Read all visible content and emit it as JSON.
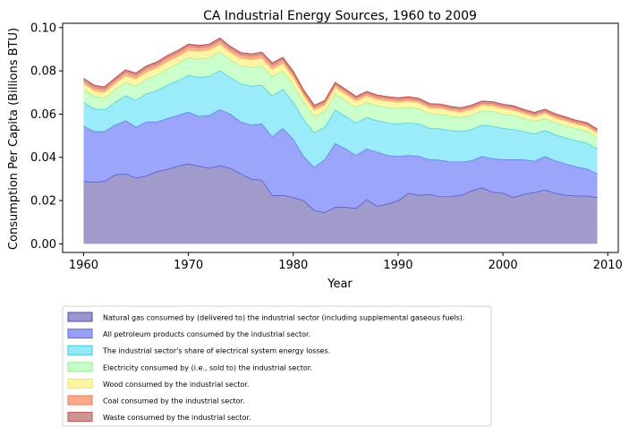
{
  "chart_data": {
    "type": "area",
    "stacked": true,
    "title": "CA Industrial Energy Sources, 1960 to 2009",
    "xlabel": "Year",
    "ylabel": "Consumption Per Capita (Billions BTU)",
    "xlim": [
      1958,
      2011
    ],
    "ylim": [
      -0.004,
      0.102
    ],
    "xticks": [
      1960,
      1970,
      1980,
      1990,
      2000,
      2010
    ],
    "yticks": [
      0.0,
      0.02,
      0.04,
      0.06,
      0.08,
      0.1
    ],
    "ytick_labels": [
      "0.00",
      "0.02",
      "0.04",
      "0.06",
      "0.08",
      "0.10"
    ],
    "grid": false,
    "legend_position": "below",
    "x": [
      1960,
      1961,
      1962,
      1963,
      1964,
      1965,
      1966,
      1967,
      1968,
      1969,
      1970,
      1971,
      1972,
      1973,
      1974,
      1975,
      1976,
      1977,
      1978,
      1979,
      1980,
      1981,
      1982,
      1983,
      1984,
      1985,
      1986,
      1987,
      1988,
      1989,
      1990,
      1991,
      1992,
      1993,
      1994,
      1995,
      1996,
      1997,
      1998,
      1999,
      2000,
      2001,
      2002,
      2003,
      2004,
      2005,
      2006,
      2007,
      2008,
      2009
    ],
    "series": [
      {
        "name": "Natural gas consumed by (delivered to) the industrial sector (including supplemental gaseous fuels).",
        "fill": "#9b96c8",
        "line": "#4650c8",
        "values": [
          0.029,
          0.0285,
          0.029,
          0.032,
          0.0325,
          0.0305,
          0.0315,
          0.0335,
          0.0345,
          0.036,
          0.037,
          0.036,
          0.035,
          0.0362,
          0.035,
          0.0325,
          0.03,
          0.0295,
          0.0225,
          0.0225,
          0.0215,
          0.02,
          0.0155,
          0.0145,
          0.017,
          0.017,
          0.0165,
          0.0205,
          0.0175,
          0.0185,
          0.02,
          0.0235,
          0.0225,
          0.023,
          0.0218,
          0.022,
          0.0225,
          0.0245,
          0.026,
          0.024,
          0.0235,
          0.0215,
          0.023,
          0.0238,
          0.025,
          0.0235,
          0.0225,
          0.0222,
          0.0222,
          0.0215
        ]
      },
      {
        "name": "All petroleum products consumed by the industrial sector.",
        "fill": "#96a0fa",
        "line": "#5a6ef0",
        "values": [
          0.0255,
          0.0235,
          0.023,
          0.023,
          0.0245,
          0.0235,
          0.025,
          0.023,
          0.0235,
          0.0235,
          0.024,
          0.023,
          0.0245,
          0.026,
          0.025,
          0.024,
          0.025,
          0.026,
          0.027,
          0.031,
          0.027,
          0.0205,
          0.02,
          0.0245,
          0.0295,
          0.027,
          0.0245,
          0.0235,
          0.025,
          0.0225,
          0.0205,
          0.0175,
          0.018,
          0.016,
          0.017,
          0.016,
          0.0155,
          0.014,
          0.0145,
          0.0155,
          0.0155,
          0.0175,
          0.016,
          0.0145,
          0.0155,
          0.015,
          0.0145,
          0.0135,
          0.0125,
          0.011
        ]
      },
      {
        "name": "The industrial sector's share of electrical system energy losses.",
        "fill": "#96ebfa",
        "line": "#32c8e6",
        "values": [
          0.011,
          0.0105,
          0.01,
          0.0105,
          0.0115,
          0.0125,
          0.013,
          0.0145,
          0.0155,
          0.016,
          0.017,
          0.018,
          0.018,
          0.018,
          0.017,
          0.0175,
          0.018,
          0.018,
          0.019,
          0.018,
          0.017,
          0.017,
          0.016,
          0.015,
          0.0155,
          0.015,
          0.015,
          0.0145,
          0.0145,
          0.015,
          0.015,
          0.015,
          0.015,
          0.0145,
          0.0145,
          0.0145,
          0.014,
          0.0145,
          0.0145,
          0.015,
          0.0145,
          0.014,
          0.013,
          0.0125,
          0.012,
          0.012,
          0.012,
          0.012,
          0.012,
          0.0115
        ]
      },
      {
        "name": "Electricity consumed by (i.e., sold to) the industrial sector.",
        "fill": "#c8ffc8",
        "line": "#96eb96",
        "values": [
          0.006,
          0.0058,
          0.0055,
          0.0058,
          0.0062,
          0.0065,
          0.0068,
          0.0072,
          0.0075,
          0.0078,
          0.0082,
          0.0085,
          0.0086,
          0.0086,
          0.0082,
          0.0084,
          0.0086,
          0.0088,
          0.009,
          0.0086,
          0.0082,
          0.008,
          0.0075,
          0.0072,
          0.0074,
          0.0072,
          0.0072,
          0.007,
          0.007,
          0.0072,
          0.0072,
          0.0072,
          0.007,
          0.0068,
          0.0068,
          0.0066,
          0.0065,
          0.0066,
          0.0066,
          0.0068,
          0.0066,
          0.0064,
          0.006,
          0.0058,
          0.0056,
          0.0056,
          0.0056,
          0.0056,
          0.0055,
          0.0052
        ]
      },
      {
        "name": "Wood consumed by the industrial sector.",
        "fill": "#fff5a0",
        "line": "#f0e650",
        "values": [
          0.0025,
          0.0025,
          0.0025,
          0.0028,
          0.003,
          0.0032,
          0.0032,
          0.0032,
          0.0033,
          0.0033,
          0.0033,
          0.0035,
          0.0035,
          0.0035,
          0.0033,
          0.0033,
          0.0035,
          0.0035,
          0.0033,
          0.0033,
          0.0033,
          0.003,
          0.0028,
          0.0028,
          0.003,
          0.003,
          0.0028,
          0.0028,
          0.0027,
          0.0027,
          0.0027,
          0.0027,
          0.0027,
          0.0025,
          0.0025,
          0.0024,
          0.0024,
          0.0025,
          0.0024,
          0.0024,
          0.0024,
          0.0024,
          0.0022,
          0.0022,
          0.0022,
          0.0021,
          0.0021,
          0.002,
          0.002,
          0.002
        ]
      },
      {
        "name": "Coal consumed by the industrial sector.",
        "fill": "#faaa8c",
        "line": "#f07850",
        "values": [
          0.0015,
          0.0015,
          0.0015,
          0.0015,
          0.0017,
          0.0017,
          0.0017,
          0.0017,
          0.0018,
          0.0018,
          0.0018,
          0.0017,
          0.0017,
          0.0018,
          0.0017,
          0.0017,
          0.0017,
          0.0018,
          0.0018,
          0.0018,
          0.0017,
          0.0015,
          0.0014,
          0.0014,
          0.0014,
          0.0014,
          0.0013,
          0.0013,
          0.0013,
          0.0013,
          0.0013,
          0.0013,
          0.0012,
          0.0012,
          0.0012,
          0.0012,
          0.0012,
          0.0012,
          0.0012,
          0.0012,
          0.0012,
          0.0012,
          0.0011,
          0.0011,
          0.0011,
          0.0011,
          0.0011,
          0.001,
          0.001,
          0.001
        ]
      },
      {
        "name": "Waste consumed by the industrial sector.",
        "fill": "#cd9696",
        "line": "#c85050",
        "values": [
          0.001,
          0.001,
          0.001,
          0.001,
          0.001,
          0.001,
          0.001,
          0.001,
          0.001,
          0.001,
          0.001,
          0.001,
          0.001,
          0.001,
          0.001,
          0.001,
          0.001,
          0.001,
          0.001,
          0.001,
          0.001,
          0.001,
          0.0008,
          0.0008,
          0.0008,
          0.0008,
          0.0008,
          0.0008,
          0.0008,
          0.0008,
          0.0008,
          0.0008,
          0.0008,
          0.0008,
          0.0008,
          0.0008,
          0.0008,
          0.0008,
          0.0008,
          0.0008,
          0.0008,
          0.0008,
          0.0008,
          0.0008,
          0.0008,
          0.0008,
          0.0008,
          0.0008,
          0.0008,
          0.0008
        ]
      }
    ]
  }
}
